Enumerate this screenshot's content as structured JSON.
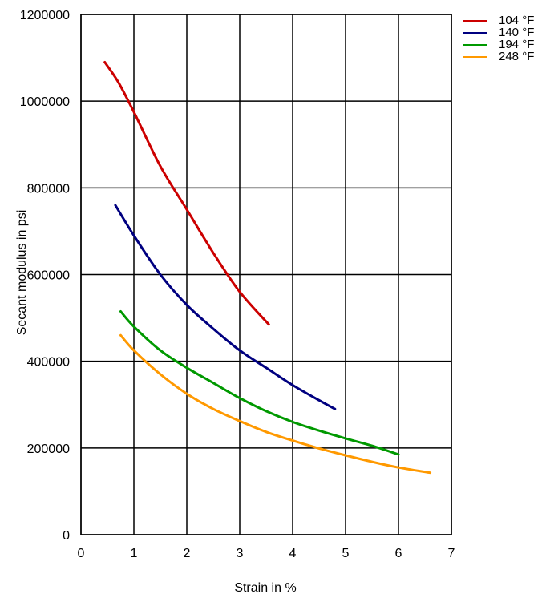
{
  "chart_data": {
    "type": "line",
    "title": "",
    "xlabel": "Strain in %",
    "ylabel": "Secant modulus in psi",
    "xlim": [
      0,
      7
    ],
    "ylim": [
      0,
      1200000
    ],
    "x_ticks": [
      "0",
      "1",
      "2",
      "3",
      "4",
      "5",
      "6",
      "7"
    ],
    "y_ticks": [
      "0",
      "200000",
      "400000",
      "600000",
      "800000",
      "1000000",
      "1200000"
    ],
    "grid": true,
    "legend_position": "top-right",
    "series": [
      {
        "name": "104 °F",
        "color": "#cc0000",
        "x": [
          0.45,
          0.7,
          1.0,
          1.5,
          2.0,
          2.5,
          3.0,
          3.55
        ],
        "y": [
          1090000,
          1045000,
          975000,
          850000,
          750000,
          650000,
          560000,
          485000
        ]
      },
      {
        "name": "140 °F",
        "color": "#000080",
        "x": [
          0.65,
          1.0,
          1.5,
          2.0,
          2.5,
          3.0,
          3.5,
          4.0,
          4.5,
          4.8
        ],
        "y": [
          760000,
          690000,
          600000,
          530000,
          475000,
          425000,
          385000,
          345000,
          310000,
          290000
        ]
      },
      {
        "name": "194 °F",
        "color": "#009900",
        "x": [
          0.75,
          1.0,
          1.5,
          2.0,
          2.5,
          3.0,
          3.5,
          4.0,
          4.5,
          5.0,
          5.5,
          6.0
        ],
        "y": [
          515000,
          480000,
          425000,
          385000,
          350000,
          315000,
          285000,
          260000,
          240000,
          222000,
          205000,
          185000
        ]
      },
      {
        "name": "248 °F",
        "color": "#ff9900",
        "x": [
          0.75,
          1.0,
          1.5,
          2.0,
          2.5,
          3.0,
          3.5,
          4.0,
          4.5,
          5.0,
          5.5,
          6.0,
          6.6
        ],
        "y": [
          460000,
          425000,
          370000,
          325000,
          290000,
          262000,
          237000,
          217000,
          199000,
          183000,
          168000,
          155000,
          143000
        ]
      }
    ]
  }
}
